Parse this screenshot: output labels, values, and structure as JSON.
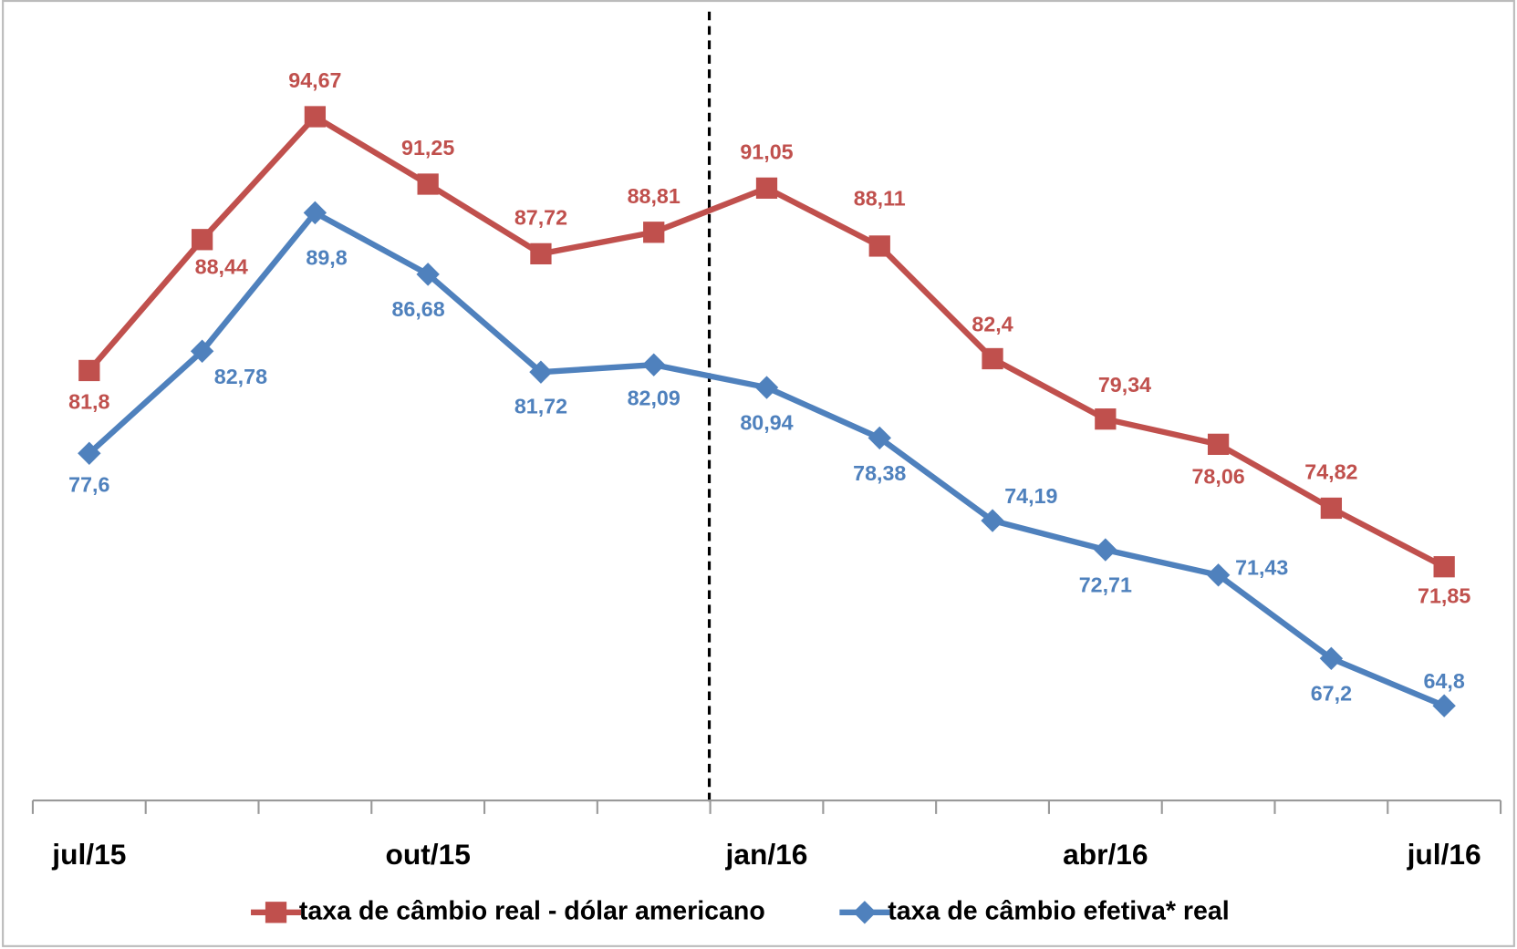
{
  "chart_data": {
    "type": "line",
    "categories": [
      "jul/15",
      null,
      null,
      "out/15",
      null,
      null,
      "jan/16",
      null,
      null,
      "abr/16",
      null,
      null,
      "jul/16"
    ],
    "series": [
      {
        "name": "taxa de câmbio real - dólar americano",
        "color": "#c0504d",
        "marker": "square",
        "values": [
          81.8,
          88.44,
          94.67,
          91.25,
          87.72,
          88.81,
          91.05,
          88.11,
          82.4,
          79.34,
          78.06,
          74.82,
          71.85
        ],
        "value_labels": [
          "81,8",
          "88,44",
          "94,67",
          "91,25",
          "87,72",
          "88,81",
          "91,05",
          "88,11",
          "82,4",
          "79,34",
          "78,06",
          "74,82",
          "71,85"
        ]
      },
      {
        "name": "taxa de câmbio efetiva* real",
        "color": "#4f81bd",
        "marker": "diamond",
        "values": [
          77.6,
          82.78,
          89.8,
          86.68,
          81.72,
          82.09,
          80.94,
          78.38,
          74.19,
          72.71,
          71.43,
          67.2,
          64.8
        ],
        "value_labels": [
          "77,6",
          "82,78",
          "89,8",
          "86,68",
          "81,72",
          "82,09",
          "80,94",
          "78,38",
          "74,19",
          "72,71",
          "71,43",
          "67,2",
          "64,8"
        ]
      }
    ],
    "ylim": [
      60,
      100
    ],
    "legend": "bottom"
  }
}
